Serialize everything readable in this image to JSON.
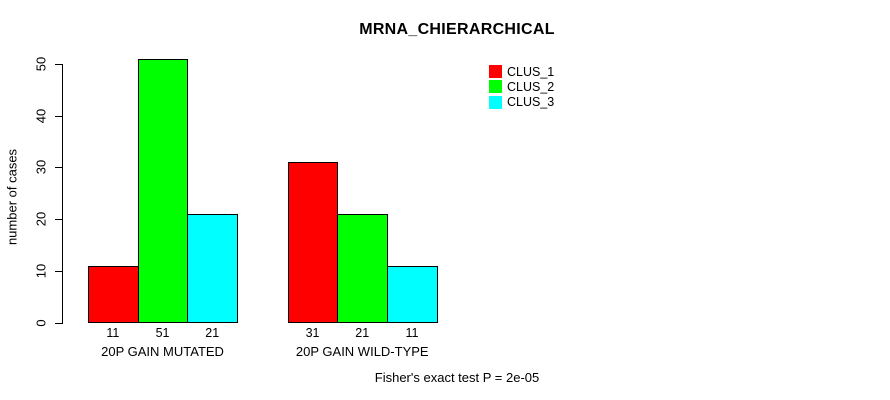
{
  "chart_data": {
    "type": "bar",
    "title": "MRNA_CHIERARCHICAL",
    "ylabel": "number of cases",
    "xlabel": "",
    "ylim": [
      0,
      50
    ],
    "yticks": [
      0,
      10,
      20,
      30,
      40,
      50
    ],
    "categories": [
      "20P GAIN MUTATED",
      "20P GAIN WILD-TYPE"
    ],
    "series": [
      {
        "name": "CLUS_1",
        "color": "#FF0000",
        "values": [
          11,
          31
        ]
      },
      {
        "name": "CLUS_2",
        "color": "#00FF00",
        "values": [
          51,
          21
        ]
      },
      {
        "name": "CLUS_3",
        "color": "#00FFFF",
        "values": [
          21,
          11
        ]
      }
    ],
    "bar_value_labels_shown": true,
    "legend_position": "top-right",
    "grid": false,
    "axis_color": "#000000",
    "footer": "Fisher's exact test P = 2e-05"
  }
}
